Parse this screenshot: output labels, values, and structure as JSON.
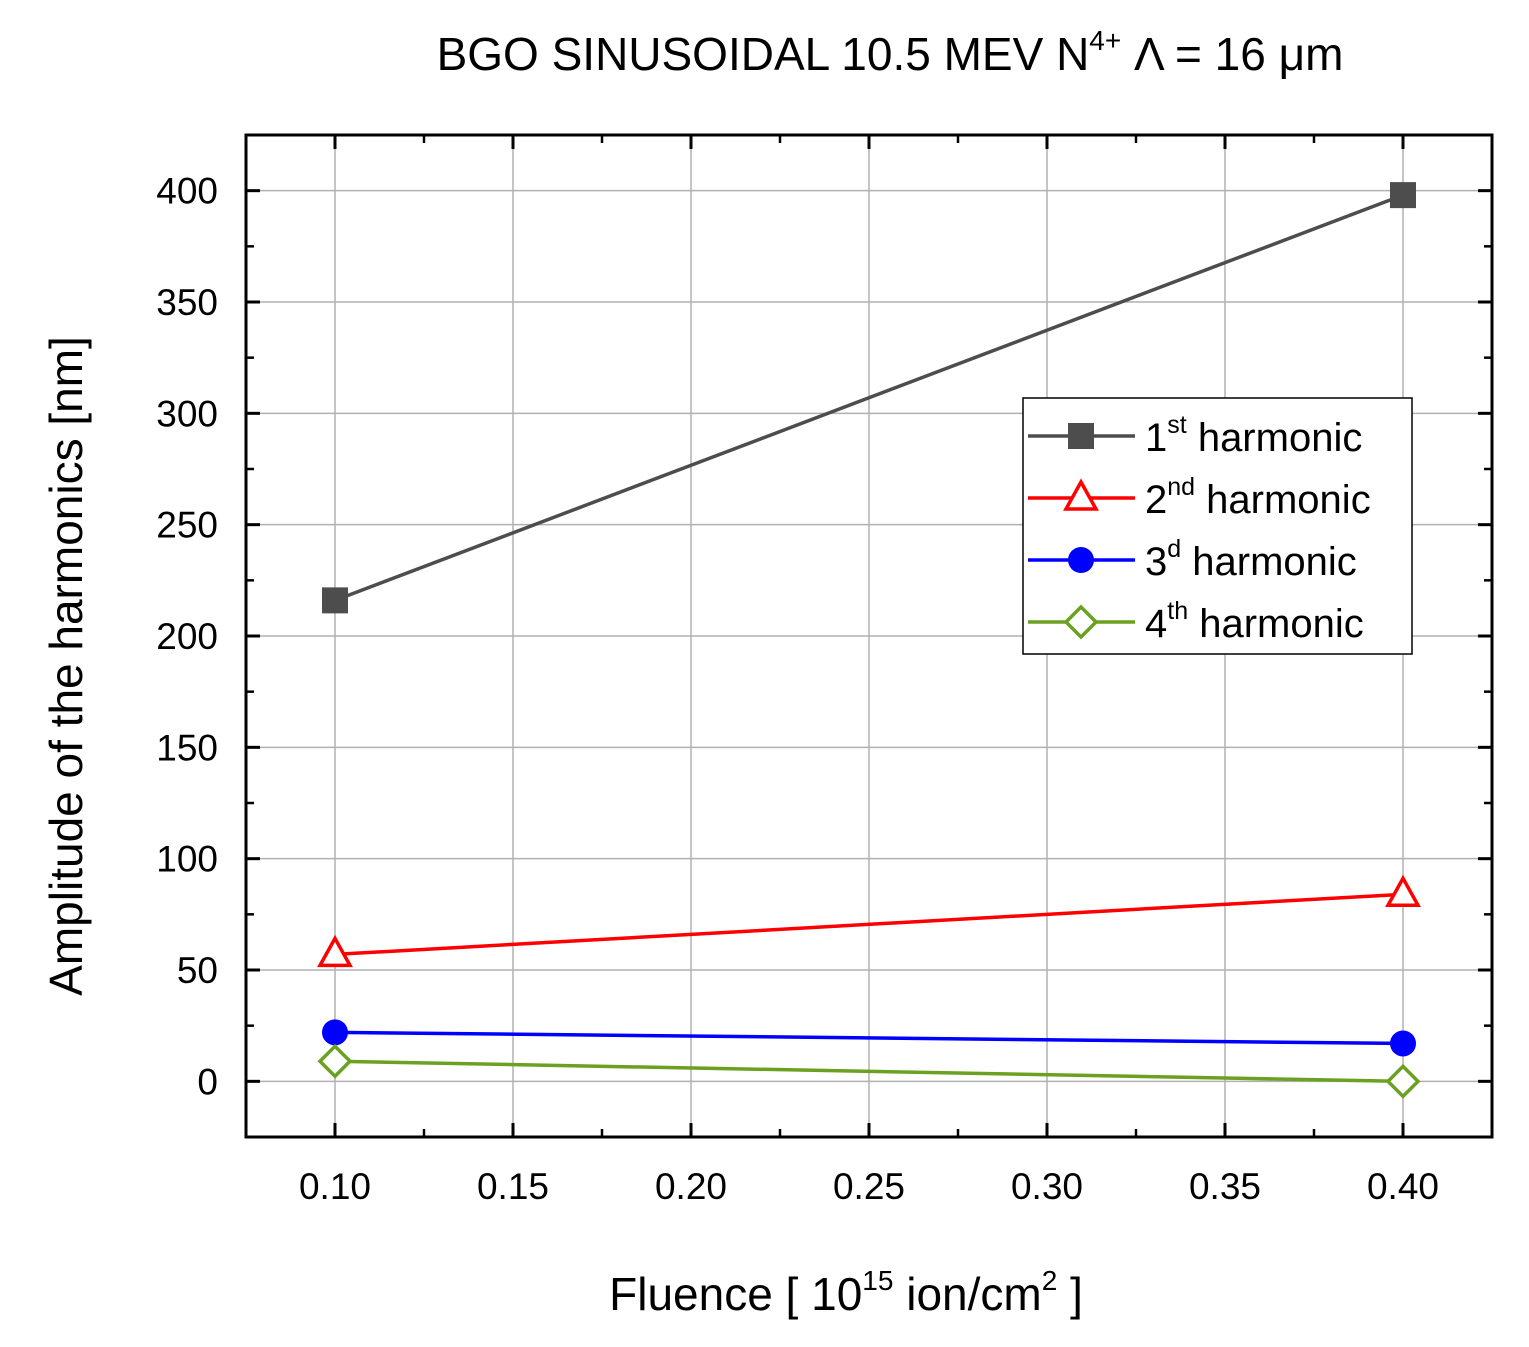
{
  "chart_data": {
    "type": "line",
    "title": {
      "main": "BGO SINUSOIDAL 10.5 MEV N",
      "sup": "4+",
      "rest": " Λ = 16 μm"
    },
    "xlabel": {
      "main": "Fluence [ 10",
      "sup1": "15",
      "mid": " ion/cm",
      "sup2": "2",
      "end": " ]"
    },
    "ylabel": "Amplitude of the harmonics [nm]",
    "xlim": [
      0.075,
      0.425
    ],
    "ylim": [
      -25,
      425
    ],
    "xticks": [
      "0.10",
      "0.15",
      "0.20",
      "0.25",
      "0.30",
      "0.35",
      "0.40"
    ],
    "yticks": [
      "0",
      "50",
      "100",
      "150",
      "200",
      "250",
      "300",
      "350",
      "400"
    ],
    "grid": true,
    "legend_position": "top-right",
    "x": [
      0.1,
      0.4
    ],
    "series": [
      {
        "name_main": "1",
        "name_sup": "st",
        "name_rest": " harmonic",
        "color": "#4d4d4d",
        "marker": "square",
        "values": [
          216,
          398
        ]
      },
      {
        "name_main": "2",
        "name_sup": "nd",
        "name_rest": " harmonic",
        "color": "#ff0000",
        "marker": "triangle-open",
        "values": [
          57,
          84
        ]
      },
      {
        "name_main": "3",
        "name_sup": "d",
        "name_rest": " harmonic",
        "color": "#0000ff",
        "marker": "circle",
        "values": [
          22,
          17
        ]
      },
      {
        "name_main": "4",
        "name_sup": "th",
        "name_rest": " harmonic",
        "color": "#6aa121",
        "marker": "diamond-open",
        "values": [
          9,
          0
        ]
      }
    ]
  }
}
